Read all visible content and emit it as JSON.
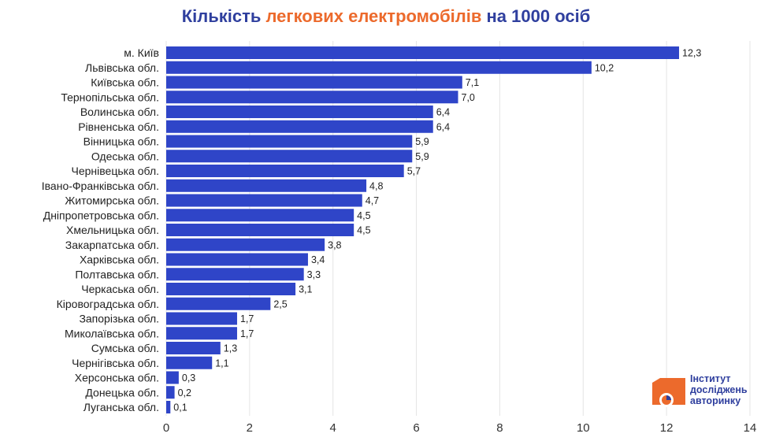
{
  "chart_data": {
    "type": "bar",
    "orientation": "horizontal",
    "title": {
      "part1": "Кількість ",
      "part2": "легкових електромобілів",
      "part3": " на 1000 осіб"
    },
    "categories": [
      "м. Київ",
      "Львівська обл.",
      "Київська обл.",
      "Тернопільська обл.",
      "Волинська обл.",
      "Рівненська обл.",
      "Вінницька обл.",
      "Одеська обл.",
      "Чернівецька обл.",
      "Івано-Франківська обл.",
      "Житомирська обл.",
      "Дніпропетровська обл.",
      "Хмельницька обл.",
      "Закарпатська обл.",
      "Харківська обл.",
      "Полтавська обл.",
      "Черкаська обл.",
      "Кіровоградська обл.",
      "Запорізька обл.",
      "Миколаївська обл.",
      "Сумська обл.",
      "Чернігівська обл.",
      "Херсонська обл.",
      "Донецька обл.",
      "Луганська обл."
    ],
    "values": [
      12.3,
      10.2,
      7.1,
      7.0,
      6.4,
      6.4,
      5.9,
      5.9,
      5.7,
      4.8,
      4.7,
      4.5,
      4.5,
      3.8,
      3.4,
      3.3,
      3.1,
      2.5,
      1.7,
      1.7,
      1.3,
      1.1,
      0.3,
      0.2,
      0.1
    ],
    "value_labels": [
      "12,3",
      "10,2",
      "7,1",
      "7,0",
      "6,4",
      "6,4",
      "5,9",
      "5,9",
      "5,7",
      "4,8",
      "4,7",
      "4,5",
      "4,5",
      "3,8",
      "3,4",
      "3,3",
      "3,1",
      "2,5",
      "1,7",
      "1,7",
      "1,3",
      "1,1",
      "0,3",
      "0,2",
      "0,1"
    ],
    "xlim": [
      0,
      14
    ],
    "xticks": [
      0,
      2,
      4,
      6,
      8,
      10,
      12,
      14
    ],
    "grid": true,
    "bar_color": "#2f45c8",
    "title_color": "#2f3f9e",
    "accent_color": "#ec6a2c"
  },
  "logo": {
    "line1": "Інститут",
    "line2": "досліджень",
    "line3": "авторинку"
  }
}
